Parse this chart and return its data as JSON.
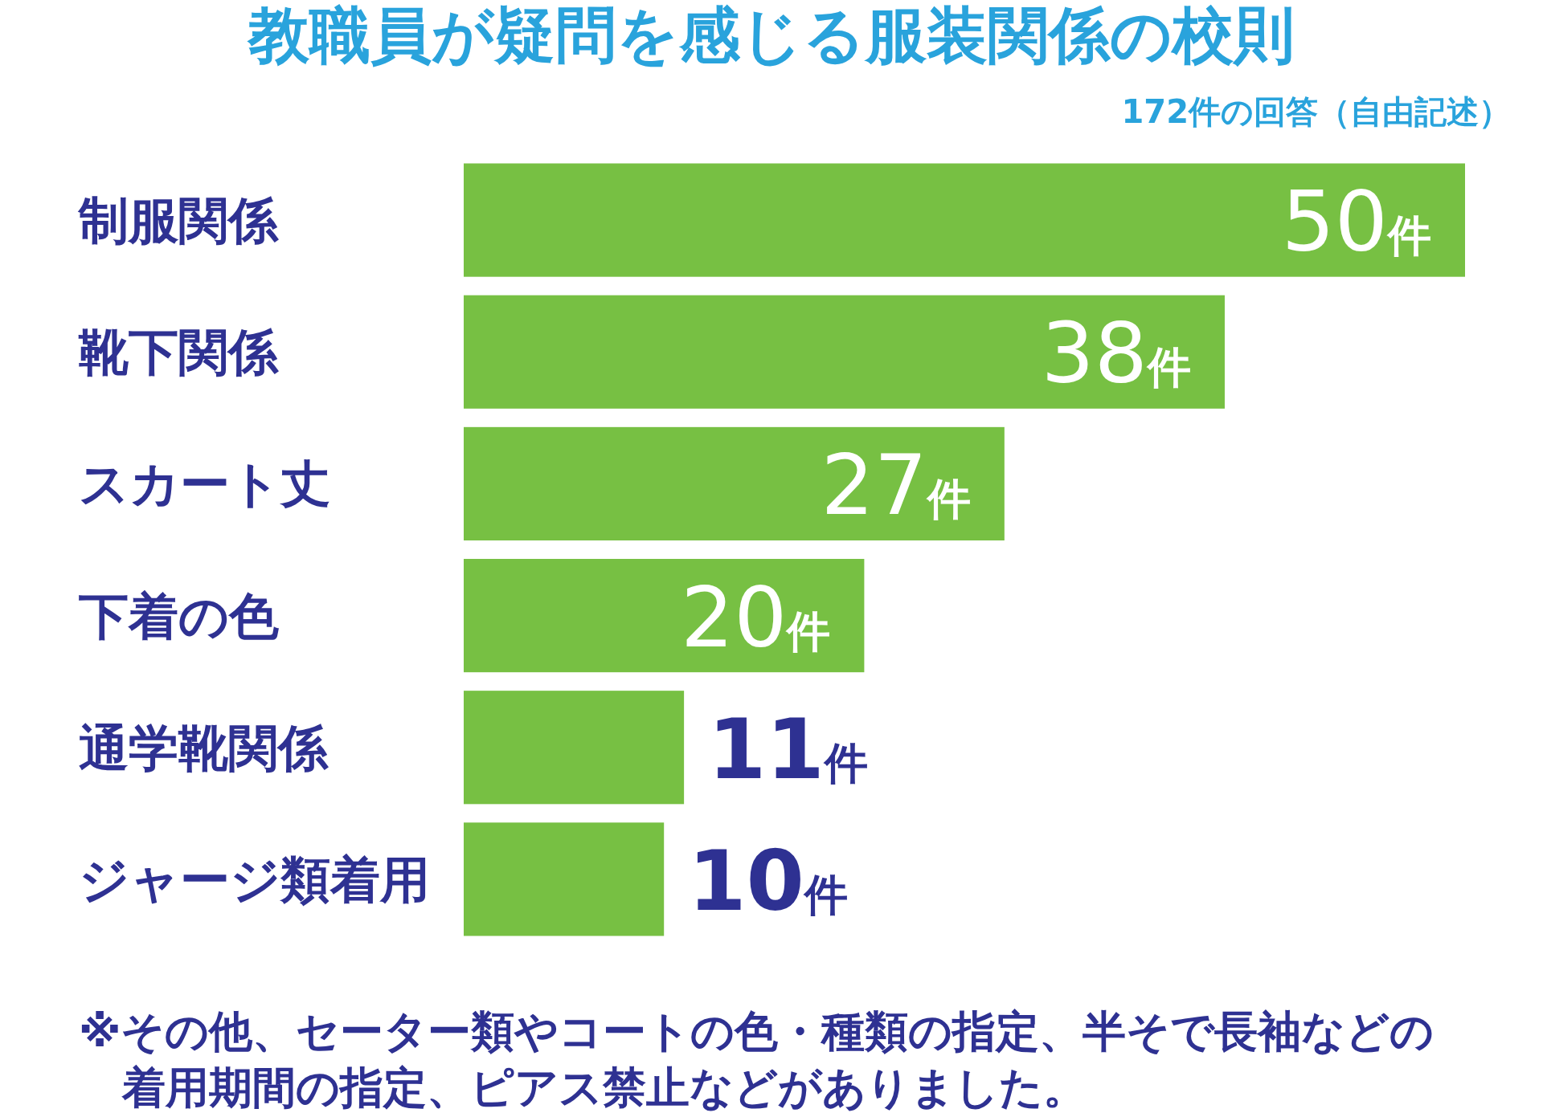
{
  "chart_data": {
    "type": "bar",
    "orientation": "horizontal",
    "title": "教職員が疑問を感じる服装関係の校則",
    "subtitle": "172件の回答（自由記述）",
    "categories": [
      "制服関係",
      "靴下関係",
      "スカート丈",
      "下着の色",
      "通学靴関係",
      "ジャージ類着用"
    ],
    "values": [
      50,
      38,
      27,
      20,
      11,
      10
    ],
    "color": "#77c043",
    "value_labels": [
      "50件",
      "38件",
      "27件",
      "20件",
      "11件",
      "10件"
    ],
    "annotations": [
      "※その他、セーター類やコートの色・種類の指定、半そで長袖などの着用期間の指定、ピアス禁止などがありました。"
    ]
  }
}
